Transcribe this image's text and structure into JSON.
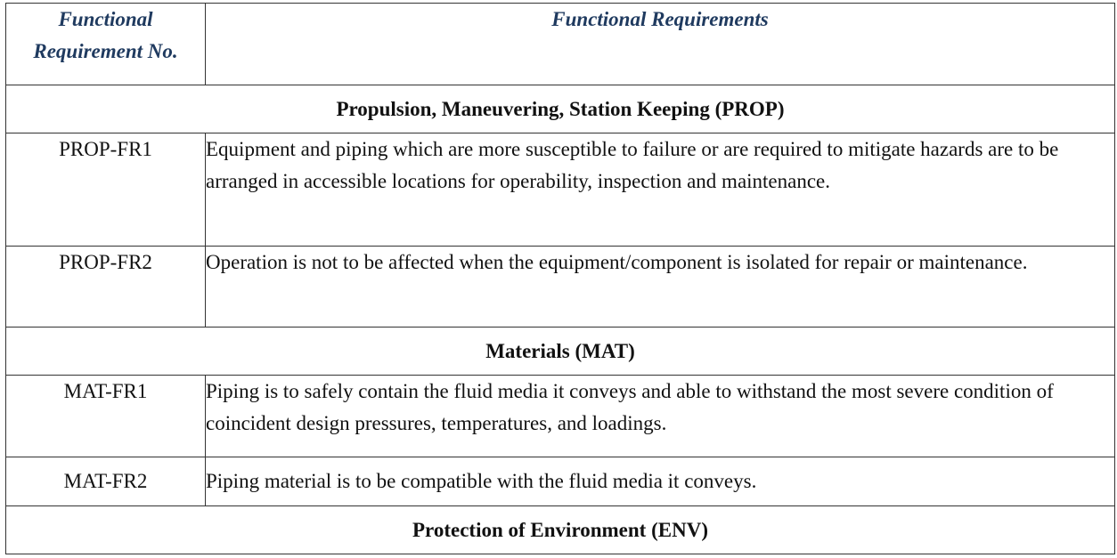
{
  "table": {
    "header": {
      "col1": "Functional Requirement No.",
      "col2": "Functional Requirements"
    },
    "sections": {
      "prop": {
        "title": "Propulsion, Maneuvering, Station Keeping (PROP)",
        "rows": [
          {
            "code": "PROP-FR1",
            "text": "Equipment and piping which are more susceptible to failure or are required to mitigate hazards are to be arranged in accessible locations for operability, inspection and maintenance."
          },
          {
            "code": "PROP-FR2",
            "text": "Operation is not to be affected when the equipment/component is isolated for repair or maintenance."
          }
        ]
      },
      "mat": {
        "title": "Materials (MAT)",
        "rows": [
          {
            "code": "MAT-FR1",
            "text": "Piping is to safely contain the fluid media it conveys and able to withstand the most severe condition of coincident design pressures, temperatures, and loadings."
          },
          {
            "code": "MAT-FR2",
            "text": "Piping material is to be compatible with the fluid media it conveys."
          }
        ]
      },
      "env": {
        "title": "Protection of Environment (ENV)"
      }
    }
  }
}
